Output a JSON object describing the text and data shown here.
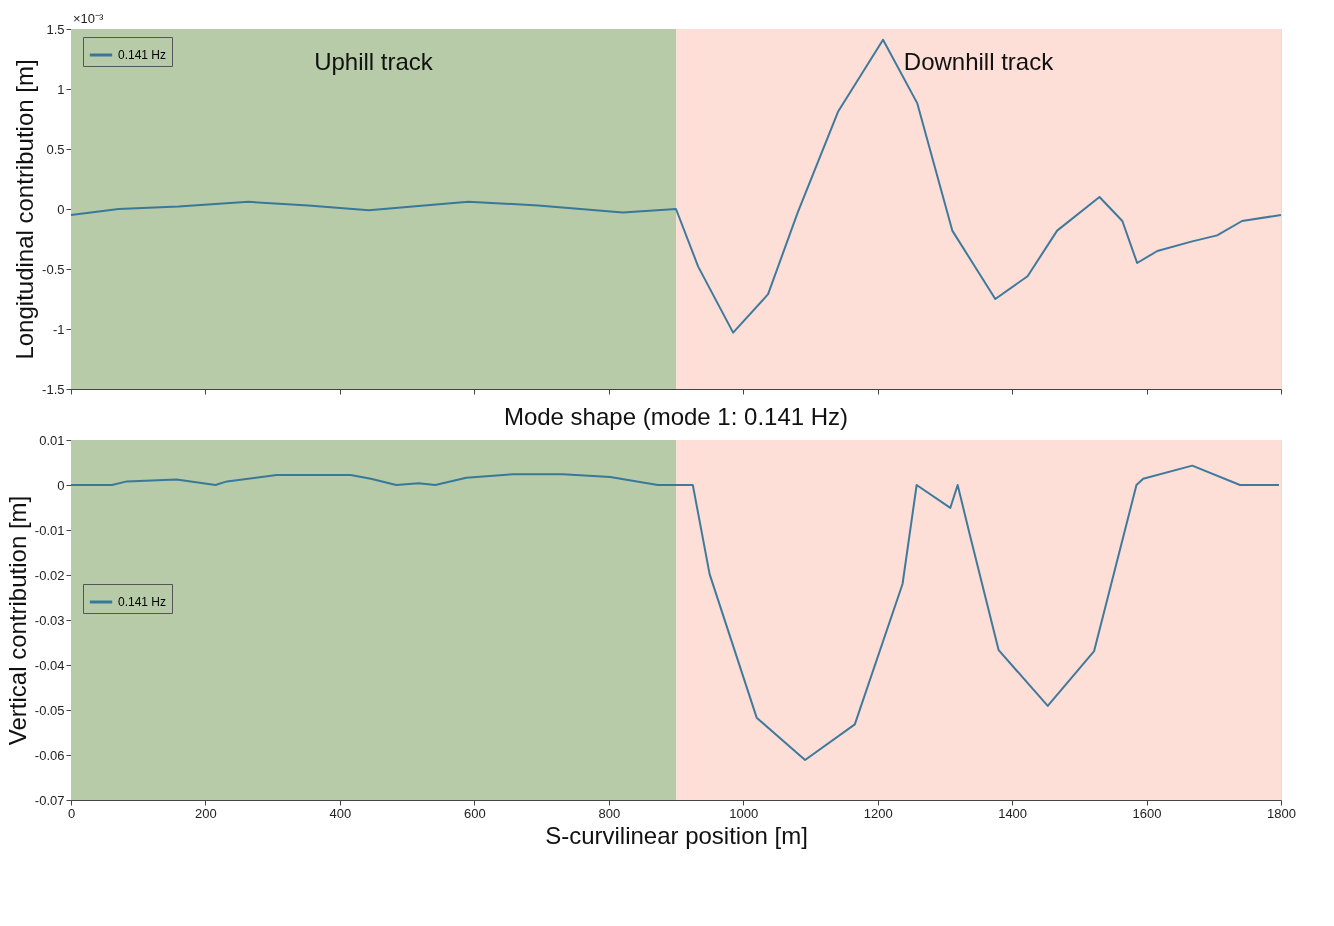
{
  "chart_data": [
    {
      "type": "line",
      "ylabel": "Longitudinal contribution  [m]",
      "annotations": [
        "×10⁻³"
      ],
      "xlim": [
        0,
        1800
      ],
      "xticks": [
        {
          "value": 0,
          "label": null
        },
        {
          "value": 200,
          "label": null
        },
        {
          "value": 400,
          "label": null
        },
        {
          "value": 600,
          "label": null
        },
        {
          "value": 800,
          "label": null
        },
        {
          "value": 1000,
          "label": null
        },
        {
          "value": 1200,
          "label": null
        },
        {
          "value": 1400,
          "label": null
        },
        {
          "value": 1600,
          "label": null
        },
        {
          "value": 1800,
          "label": null
        }
      ],
      "ylim": [
        -1.5,
        1.5
      ],
      "yticks": [
        -1.5,
        -1,
        -0.5,
        0,
        0.5,
        1,
        1.5
      ],
      "tick_labels": "y",
      "legend": "top left",
      "grid": false,
      "bands": [
        {
          "axis": "x",
          "from": 0,
          "to": 900,
          "label": "Uphill track",
          "color": "#b8cba9"
        },
        {
          "axis": "x",
          "from": 900,
          "to": 1800,
          "label": "Downhill track",
          "color": "#fddfd8"
        }
      ],
      "series": [
        {
          "name": "0.141 Hz",
          "color": "#2a6f97",
          "x": [
            0,
            71,
            160,
            264,
            353,
            443,
            591,
            695,
            821,
            900,
            933,
            985,
            1037,
            1081,
            1141,
            1208,
            1259,
            1311,
            1375,
            1423,
            1467,
            1530,
            1564,
            1586,
            1616,
            1668,
            1705,
            1742,
            1800
          ],
          "values": [
            -0.05,
            0.0,
            0.02,
            0.06,
            0.03,
            -0.01,
            0.06,
            0.03,
            -0.03,
            0.0,
            -0.48,
            -1.03,
            -0.71,
            -0.03,
            0.81,
            1.41,
            0.88,
            -0.18,
            -0.75,
            -0.56,
            -0.18,
            0.1,
            -0.1,
            -0.45,
            -0.35,
            -0.27,
            -0.22,
            -0.1,
            -0.05
          ]
        }
      ]
    },
    {
      "type": "line",
      "title": "Mode shape (mode 1: 0.141 Hz)",
      "xlabel": "S-curvilinear position [m]",
      "ylabel": "Vertical contribution  [m]",
      "xlim": [
        0,
        1800
      ],
      "xticks": [
        0,
        200,
        400,
        600,
        800,
        1000,
        1200,
        1400,
        1600,
        1800
      ],
      "ylim": [
        -0.07,
        0.01
      ],
      "yticks": [
        -0.07,
        -0.06,
        -0.05,
        -0.04,
        -0.03,
        -0.02,
        -0.01,
        0,
        0.01
      ],
      "legend": "left",
      "grid": false,
      "bands": [
        {
          "axis": "x",
          "from": 0,
          "to": 900,
          "color": "#b8cba9"
        },
        {
          "axis": "x",
          "from": 900,
          "to": 1800,
          "color": "#fddfd8"
        }
      ],
      "series": [
        {
          "name": "0.141 Hz",
          "color": "#2a6f97",
          "x": [
            0,
            19,
            61,
            83,
            157,
            215,
            232,
            306,
            416,
            446,
            484,
            517,
            542,
            588,
            658,
            732,
            802,
            873,
            925,
            950,
            1020,
            1092,
            1166,
            1237,
            1258,
            1308,
            1319,
            1337,
            1380,
            1453,
            1522,
            1585,
            1595,
            1668,
            1739,
            1797
          ],
          "values": [
            0,
            0,
            0,
            0.0008,
            0.0012,
            0,
            0.0008,
            0.0022,
            0.0022,
            0.0014,
            0,
            0.0004,
            0,
            0.0016,
            0.0024,
            0.0024,
            0.0018,
            0,
            0,
            -0.0198,
            -0.0517,
            -0.0611,
            -0.0532,
            -0.022,
            0,
            -0.0051,
            0,
            -0.011,
            -0.0367,
            -0.0491,
            -0.0369,
            0,
            0.0014,
            0.0043,
            0,
            0
          ]
        }
      ]
    }
  ]
}
